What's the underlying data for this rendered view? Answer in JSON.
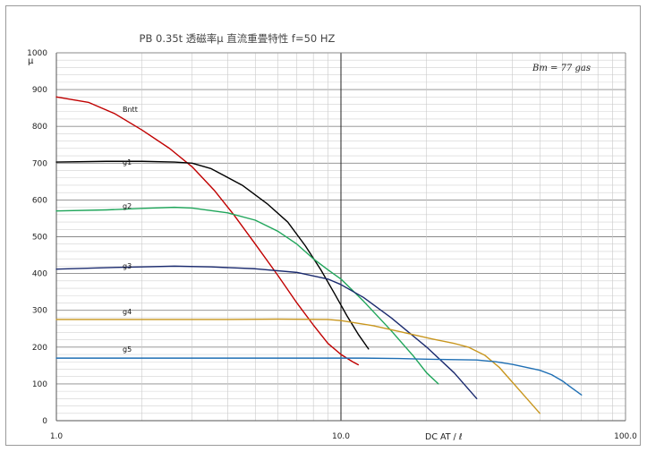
{
  "chart_data": {
    "type": "line",
    "title": "PB 0.35t 透磁率μ 直流重畳特性 f=50 HZ",
    "xlabel": "DC AT / ℓ",
    "ylabel": "μ",
    "x_scale": "log",
    "xlim": [
      1.0,
      100.0
    ],
    "ylim": [
      0,
      1000
    ],
    "grid": true,
    "x_tick_labels": [
      "1.0",
      "10.0",
      "100.0"
    ],
    "y_ticks": [
      0,
      100,
      200,
      300,
      400,
      500,
      600,
      700,
      800,
      900,
      1000
    ],
    "annotation": "Bm = 77 gas",
    "series": [
      {
        "name": "Bntt",
        "color": "#c00000",
        "points": [
          [
            1.0,
            880
          ],
          [
            1.3,
            865
          ],
          [
            1.6,
            835
          ],
          [
            2.0,
            790
          ],
          [
            2.5,
            740
          ],
          [
            3.0,
            690
          ],
          [
            3.6,
            625
          ],
          [
            4.2,
            560
          ],
          [
            5.0,
            480
          ],
          [
            6.0,
            395
          ],
          [
            7.0,
            320
          ],
          [
            8.0,
            260
          ],
          [
            9.0,
            210
          ],
          [
            10.0,
            180
          ],
          [
            11.0,
            160
          ],
          [
            11.5,
            152
          ]
        ]
      },
      {
        "name": "g1",
        "color": "#000000",
        "points": [
          [
            1.0,
            703
          ],
          [
            1.5,
            705
          ],
          [
            2.0,
            705
          ],
          [
            2.6,
            703
          ],
          [
            3.0,
            700
          ],
          [
            3.5,
            685
          ],
          [
            4.5,
            640
          ],
          [
            5.5,
            590
          ],
          [
            6.5,
            540
          ],
          [
            7.5,
            475
          ],
          [
            8.5,
            410
          ],
          [
            9.5,
            345
          ],
          [
            10.5,
            285
          ],
          [
            11.5,
            235
          ],
          [
            12.5,
            195
          ]
        ]
      },
      {
        "name": "g2",
        "color": "#1fa55a",
        "points": [
          [
            1.0,
            570
          ],
          [
            1.5,
            573
          ],
          [
            2.0,
            577
          ],
          [
            2.6,
            580
          ],
          [
            3.0,
            578
          ],
          [
            4.0,
            565
          ],
          [
            5.0,
            545
          ],
          [
            6.0,
            515
          ],
          [
            7.0,
            480
          ],
          [
            8.0,
            440
          ],
          [
            9.0,
            410
          ],
          [
            10.0,
            385
          ],
          [
            12.0,
            325
          ],
          [
            15.0,
            245
          ],
          [
            18.0,
            175
          ],
          [
            20.0,
            130
          ],
          [
            22.0,
            100
          ]
        ]
      },
      {
        "name": "g3",
        "color": "#1a2a6e",
        "points": [
          [
            1.0,
            412
          ],
          [
            1.5,
            416
          ],
          [
            2.0,
            418
          ],
          [
            2.6,
            420
          ],
          [
            3.5,
            418
          ],
          [
            5.0,
            413
          ],
          [
            7.0,
            403
          ],
          [
            9.0,
            385
          ],
          [
            10.0,
            370
          ],
          [
            12.0,
            335
          ],
          [
            15.0,
            280
          ],
          [
            20.0,
            200
          ],
          [
            25.0,
            130
          ],
          [
            30.0,
            60
          ]
        ]
      },
      {
        "name": "g4",
        "color": "#c8961e",
        "points": [
          [
            1.0,
            275
          ],
          [
            2.0,
            275
          ],
          [
            4.0,
            275
          ],
          [
            6.0,
            276
          ],
          [
            9.0,
            275
          ],
          [
            10.0,
            272
          ],
          [
            13.0,
            258
          ],
          [
            17.0,
            238
          ],
          [
            21.0,
            222
          ],
          [
            25.0,
            210
          ],
          [
            28.0,
            200
          ],
          [
            32.0,
            178
          ],
          [
            36.0,
            145
          ],
          [
            40.0,
            105
          ],
          [
            45.0,
            60
          ],
          [
            50.0,
            20
          ]
        ]
      },
      {
        "name": "g5",
        "color": "#1f6fb4",
        "points": [
          [
            1.0,
            170
          ],
          [
            3.0,
            170
          ],
          [
            6.0,
            170
          ],
          [
            9.0,
            170
          ],
          [
            12.0,
            170
          ],
          [
            16.0,
            169
          ],
          [
            20.0,
            167
          ],
          [
            25.0,
            166
          ],
          [
            30.0,
            165
          ],
          [
            35.0,
            160
          ],
          [
            40.0,
            153
          ],
          [
            50.0,
            137
          ],
          [
            55.0,
            125
          ],
          [
            60.0,
            108
          ],
          [
            65.0,
            88
          ],
          [
            70.0,
            70
          ]
        ]
      }
    ]
  }
}
